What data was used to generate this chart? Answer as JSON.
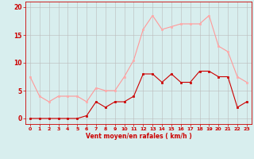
{
  "hours": [
    0,
    1,
    2,
    3,
    4,
    5,
    6,
    7,
    8,
    9,
    10,
    11,
    12,
    13,
    14,
    15,
    16,
    17,
    18,
    19,
    20,
    21,
    22,
    23
  ],
  "wind_avg": [
    0,
    0,
    0,
    0,
    0,
    0,
    0.5,
    3,
    2,
    3,
    3,
    4,
    8,
    8,
    6.5,
    8,
    6.5,
    6.5,
    8.5,
    8.5,
    7.5,
    7.5,
    2,
    3
  ],
  "wind_gust": [
    7.5,
    4,
    3,
    4,
    4,
    4,
    3,
    5.5,
    5,
    5,
    7.5,
    10.5,
    16,
    18.5,
    16,
    16.5,
    17,
    17,
    17,
    18.5,
    13,
    12,
    7.5,
    6.5
  ],
  "line_avg_color": "#cc0000",
  "line_gust_color": "#ff9999",
  "marker_color_avg": "#cc0000",
  "marker_color_gust": "#ffaaaa",
  "bg_color": "#d8eeee",
  "grid_color": "#bbbbbb",
  "axis_color": "#cc0000",
  "xlabel": "Vent moyen/en rafales ( km/h )",
  "ylim": [
    -1,
    21
  ],
  "yticks": [
    0,
    5,
    10,
    15,
    20
  ],
  "xlim": [
    -0.5,
    23.5
  ],
  "xticks": [
    0,
    1,
    2,
    3,
    4,
    5,
    6,
    7,
    8,
    9,
    10,
    11,
    12,
    13,
    14,
    15,
    16,
    17,
    18,
    19,
    20,
    21,
    22,
    23
  ]
}
